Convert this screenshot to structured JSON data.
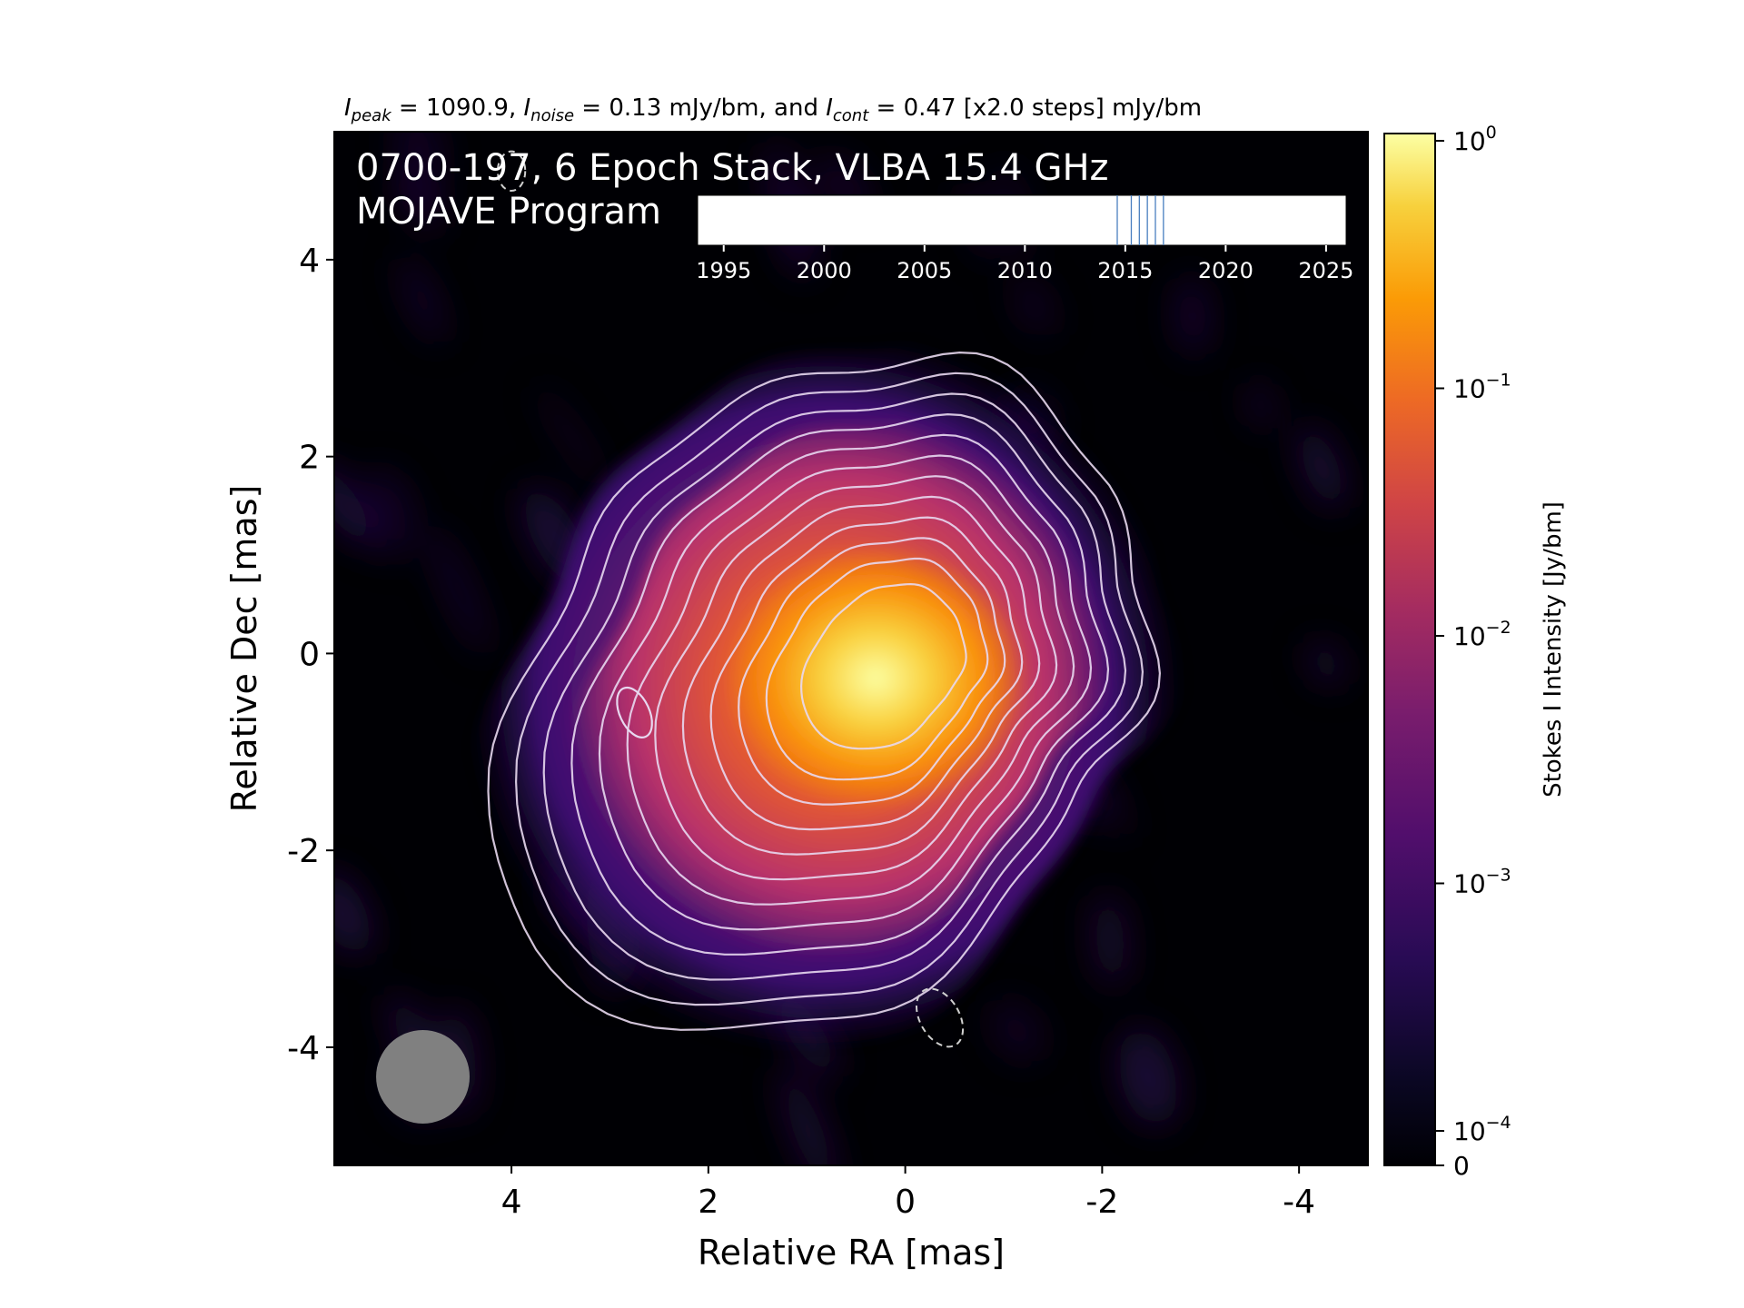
{
  "header": {
    "i_peak_label": "peak",
    "i_peak_value": "1090.9",
    "i_noise_label": "noise",
    "i_noise_value": "0.13 mJy/bm",
    "i_cont_label": "cont",
    "i_cont_value": "0.47 [x2.0 steps] mJy/bm",
    "sep_and": ", and "
  },
  "overlay": {
    "line1": "0700-197, 6 Epoch Stack, VLBA 15.4 GHz",
    "line2": "MOJAVE Program"
  },
  "chart_data": {
    "type": "heatmap",
    "xlabel": "Relative RA [mas]",
    "ylabel": "Relative Dec [mas]",
    "xlim": [
      5.8,
      -4.7
    ],
    "ylim": [
      -5.2,
      5.3
    ],
    "x_ticks": [
      4,
      2,
      0,
      -2,
      -4
    ],
    "y_ticks": [
      4,
      2,
      0,
      -2,
      -4
    ],
    "colormap": "inferno",
    "colorbar": {
      "label": "Stokes I Intensity [Jy/bm]",
      "scale": "log",
      "range": [
        0,
        1.0
      ],
      "ticks": [
        {
          "base": "10",
          "exp": "0",
          "value": 1.0
        },
        {
          "base": "10",
          "exp": "−1",
          "value": 0.1
        },
        {
          "base": "10",
          "exp": "−2",
          "value": 0.01
        },
        {
          "base": "10",
          "exp": "−3",
          "value": 0.001
        },
        {
          "base": "10",
          "exp": "−4",
          "value": 0.0001
        },
        {
          "base": "0",
          "exp": "",
          "value": 0
        }
      ]
    },
    "peak_position": [
      0.05,
      0.0
    ],
    "beam": {
      "ra": 4.9,
      "dec": -4.3,
      "major_mas": 0.95,
      "color": "#808080"
    },
    "contour_count": 12,
    "contour_color": "#e8d8f0",
    "timeline": {
      "x_ticks": [
        1995,
        2000,
        2005,
        2010,
        2015,
        2020,
        2025
      ],
      "xlim": [
        1993.7,
        2026.0
      ],
      "epochs": [
        2014.6,
        2015.3,
        2015.7,
        2016.1,
        2016.5,
        2016.9
      ],
      "epoch_color": "#4a7fc0"
    }
  }
}
